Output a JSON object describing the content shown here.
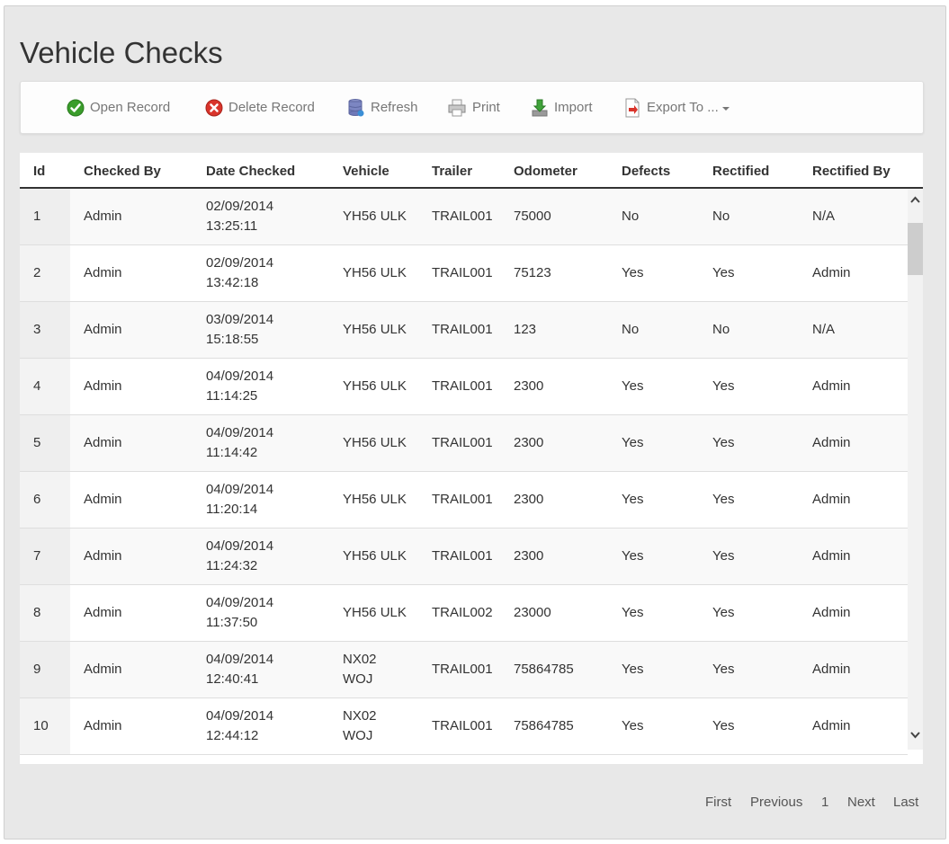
{
  "page": {
    "title": "Vehicle Checks"
  },
  "toolbar": {
    "open_label": "Open Record",
    "delete_label": "Delete Record",
    "refresh_label": "Refresh",
    "print_label": "Print",
    "import_label": "Import",
    "export_label": "Export To ..."
  },
  "table": {
    "headers": [
      "Id",
      "Checked By",
      "Date Checked",
      "Vehicle",
      "Trailer",
      "Odometer",
      "Defects",
      "Rectified",
      "Rectified By"
    ],
    "rows": [
      {
        "id": "1",
        "checked_by": "Admin",
        "date": "02/09/2014",
        "time": "13:25:11",
        "vehicle_1": "YH56 ULK",
        "vehicle_2": "",
        "trailer": "TRAIL001",
        "odometer": "75000",
        "defects": "No",
        "rectified": "No",
        "rectified_by": "N/A"
      },
      {
        "id": "2",
        "checked_by": "Admin",
        "date": "02/09/2014",
        "time": "13:42:18",
        "vehicle_1": "YH56 ULK",
        "vehicle_2": "",
        "trailer": "TRAIL001",
        "odometer": "75123",
        "defects": "Yes",
        "rectified": "Yes",
        "rectified_by": "Admin"
      },
      {
        "id": "3",
        "checked_by": "Admin",
        "date": "03/09/2014",
        "time": "15:18:55",
        "vehicle_1": "YH56 ULK",
        "vehicle_2": "",
        "trailer": "TRAIL001",
        "odometer": "123",
        "defects": "No",
        "rectified": "No",
        "rectified_by": "N/A"
      },
      {
        "id": "4",
        "checked_by": "Admin",
        "date": "04/09/2014",
        "time": "11:14:25",
        "vehicle_1": "YH56 ULK",
        "vehicle_2": "",
        "trailer": "TRAIL001",
        "odometer": "2300",
        "defects": "Yes",
        "rectified": "Yes",
        "rectified_by": "Admin"
      },
      {
        "id": "5",
        "checked_by": "Admin",
        "date": "04/09/2014",
        "time": "11:14:42",
        "vehicle_1": "YH56 ULK",
        "vehicle_2": "",
        "trailer": "TRAIL001",
        "odometer": "2300",
        "defects": "Yes",
        "rectified": "Yes",
        "rectified_by": "Admin"
      },
      {
        "id": "6",
        "checked_by": "Admin",
        "date": "04/09/2014",
        "time": "11:20:14",
        "vehicle_1": "YH56 ULK",
        "vehicle_2": "",
        "trailer": "TRAIL001",
        "odometer": "2300",
        "defects": "Yes",
        "rectified": "Yes",
        "rectified_by": "Admin"
      },
      {
        "id": "7",
        "checked_by": "Admin",
        "date": "04/09/2014",
        "time": "11:24:32",
        "vehicle_1": "YH56 ULK",
        "vehicle_2": "",
        "trailer": "TRAIL001",
        "odometer": "2300",
        "defects": "Yes",
        "rectified": "Yes",
        "rectified_by": "Admin"
      },
      {
        "id": "8",
        "checked_by": "Admin",
        "date": "04/09/2014",
        "time": "11:37:50",
        "vehicle_1": "YH56 ULK",
        "vehicle_2": "",
        "trailer": "TRAIL002",
        "odometer": "23000",
        "defects": "Yes",
        "rectified": "Yes",
        "rectified_by": "Admin"
      },
      {
        "id": "9",
        "checked_by": "Admin",
        "date": "04/09/2014",
        "time": "12:40:41",
        "vehicle_1": "NX02",
        "vehicle_2": "WOJ",
        "trailer": "TRAIL001",
        "odometer": "75864785",
        "defects": "Yes",
        "rectified": "Yes",
        "rectified_by": "Admin"
      },
      {
        "id": "10",
        "checked_by": "Admin",
        "date": "04/09/2014",
        "time": "12:44:12",
        "vehicle_1": "NX02",
        "vehicle_2": "WOJ",
        "trailer": "TRAIL001",
        "odometer": "75864785",
        "defects": "Yes",
        "rectified": "Yes",
        "rectified_by": "Admin"
      }
    ]
  },
  "pager": {
    "first": "First",
    "previous": "Previous",
    "page": "1",
    "next": "Next",
    "last": "Last"
  },
  "icons": {
    "open": "green-check-icon",
    "delete": "red-x-icon",
    "refresh": "database-refresh-icon",
    "print": "printer-icon",
    "import": "download-arrow-icon",
    "export": "document-export-icon"
  }
}
